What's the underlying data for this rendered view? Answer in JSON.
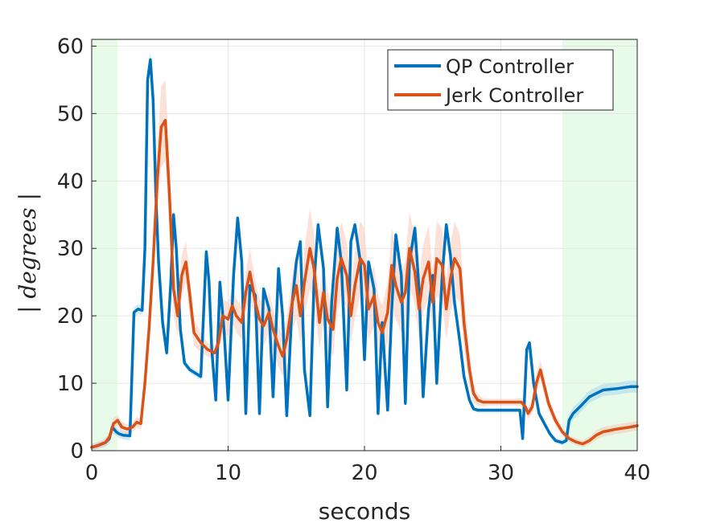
{
  "chart_data": {
    "type": "line",
    "xlabel": "seconds",
    "ylabel": "| degrees |",
    "xlim": [
      0,
      40
    ],
    "ylim": [
      0,
      61
    ],
    "xticks": [
      "0",
      "10",
      "20",
      "30",
      "40"
    ],
    "yticks": [
      "0",
      "10",
      "20",
      "30",
      "40",
      "50",
      "60"
    ],
    "grid": true,
    "legend_position": "top-right",
    "highlight_regions": [
      {
        "x_start": 0,
        "x_end": 1.9,
        "color": "#e8fbe8"
      },
      {
        "x_start": 34.5,
        "x_end": 40,
        "color": "#e8fbe8"
      }
    ],
    "series": [
      {
        "name": "QP Controller",
        "color": "#0072bd",
        "band_color": "#a8d8f0",
        "x": [
          0,
          0.5,
          1.0,
          1.3,
          1.5,
          1.8,
          2.0,
          2.3,
          2.8,
          3.1,
          3.4,
          3.7,
          3.9,
          4.1,
          4.3,
          4.5,
          4.7,
          4.9,
          5.2,
          5.5,
          5.8,
          6.0,
          6.2,
          6.5,
          6.8,
          7.2,
          7.6,
          8.0,
          8.4,
          8.6,
          8.8,
          9.1,
          9.4,
          9.7,
          10.0,
          10.4,
          10.7,
          11.0,
          11.3,
          11.6,
          12.0,
          12.3,
          12.6,
          13.0,
          13.3,
          13.7,
          14.0,
          14.3,
          14.7,
          15.0,
          15.3,
          15.6,
          16.0,
          16.3,
          16.6,
          17.0,
          17.3,
          17.6,
          18.0,
          18.3,
          18.7,
          19.0,
          19.3,
          19.7,
          20.0,
          20.3,
          20.7,
          21.0,
          21.3,
          21.7,
          22.0,
          22.3,
          22.7,
          23.0,
          23.3,
          23.7,
          24.0,
          24.3,
          24.7,
          25.0,
          25.3,
          25.7,
          26.0,
          26.3,
          26.6,
          27.0,
          27.3,
          27.7,
          28.0,
          28.3,
          28.6,
          30.0,
          31.0,
          31.4,
          31.6,
          31.9,
          32.1,
          32.4,
          32.8,
          33.2,
          33.6,
          34.0,
          34.5,
          34.8,
          35.0,
          35.3,
          35.8,
          36.5,
          37.5,
          38.5,
          39.5,
          40.0
        ],
        "values": [
          0.5,
          0.8,
          1.2,
          1.8,
          3.5,
          2.8,
          2.5,
          2.3,
          2.2,
          20.5,
          21.0,
          20.8,
          30.0,
          55.0,
          58.0,
          52.0,
          38.0,
          28.0,
          19.0,
          14.5,
          25.0,
          35.0,
          30.0,
          18.0,
          13.0,
          12.0,
          11.5,
          11.0,
          29.5,
          25.0,
          15.0,
          7.5,
          25.0,
          18.0,
          7.5,
          26.0,
          34.5,
          28.0,
          5.5,
          24.5,
          23.0,
          5.5,
          24.0,
          21.0,
          8.0,
          27.0,
          20.0,
          5.2,
          22.0,
          28.0,
          31.0,
          12.0,
          5.2,
          25.0,
          33.5,
          27.0,
          6.5,
          22.0,
          33.0,
          28.0,
          9.0,
          31.0,
          33.5,
          28.0,
          13.5,
          28.0,
          24.0,
          5.5,
          19.0,
          6.0,
          21.0,
          32.0,
          26.0,
          7.0,
          28.0,
          33.0,
          24.0,
          8.0,
          21.0,
          26.0,
          10.0,
          26.0,
          33.5,
          29.0,
          22.0,
          16.0,
          11.0,
          7.5,
          6.2,
          6.0,
          6.0,
          6.0,
          6.0,
          6.0,
          1.8,
          15.0,
          16.0,
          10.0,
          5.5,
          4.0,
          2.5,
          1.5,
          1.2,
          1.5,
          4.5,
          5.5,
          6.5,
          8.0,
          9.0,
          9.2,
          9.5,
          9.5
        ],
        "band": [
          0.5,
          0.5,
          0.6,
          0.7,
          0.9,
          0.6,
          0.6,
          0.6,
          0.7,
          0.8,
          0.7,
          0.7,
          1.0,
          1.5,
          1.2,
          1.5,
          1.2,
          1.2,
          1.0,
          0.8,
          1.0,
          1.0,
          1.0,
          0.8,
          0.5,
          0.5,
          0.5,
          0.5,
          0.8,
          0.8,
          0.6,
          0.5,
          0.8,
          0.8,
          0.5,
          0.8,
          0.8,
          0.8,
          0.5,
          0.8,
          0.6,
          0.5,
          0.8,
          0.6,
          0.5,
          0.8,
          0.6,
          0.5,
          0.8,
          0.8,
          0.8,
          0.6,
          0.5,
          0.8,
          0.8,
          0.8,
          0.5,
          0.8,
          0.8,
          0.8,
          0.5,
          0.8,
          0.8,
          0.8,
          0.5,
          0.8,
          0.6,
          0.5,
          0.6,
          0.5,
          0.6,
          0.8,
          0.6,
          0.5,
          0.8,
          0.8,
          0.6,
          0.5,
          0.6,
          0.6,
          0.5,
          0.8,
          0.8,
          0.8,
          0.6,
          0.6,
          0.5,
          0.5,
          0.4,
          0.3,
          0.3,
          0.3,
          0.3,
          0.3,
          0.3,
          0.5,
          0.5,
          0.5,
          0.5,
          0.5,
          0.4,
          0.4,
          0.4,
          0.4,
          0.8,
          0.9,
          0.9,
          0.9,
          0.9,
          0.9,
          0.9,
          0.9
        ]
      },
      {
        "name": "Jerk Controller",
        "color": "#d95319",
        "band_color": "#f7c9b8",
        "x": [
          0,
          0.5,
          1.0,
          1.3,
          1.6,
          1.9,
          2.2,
          2.6,
          3.0,
          3.3,
          3.6,
          3.9,
          4.2,
          4.5,
          4.8,
          5.1,
          5.4,
          5.7,
          6.0,
          6.3,
          6.6,
          6.9,
          7.2,
          7.5,
          8.0,
          8.5,
          9.0,
          9.3,
          9.6,
          10.0,
          10.3,
          10.6,
          11.0,
          11.3,
          11.6,
          12.0,
          12.3,
          12.6,
          13.0,
          13.3,
          13.7,
          14.0,
          14.3,
          14.7,
          15.0,
          15.3,
          15.6,
          16.0,
          16.3,
          16.7,
          17.0,
          17.3,
          17.7,
          18.0,
          18.3,
          18.7,
          19.0,
          19.3,
          19.7,
          20.0,
          20.3,
          20.7,
          21.0,
          21.3,
          21.7,
          22.0,
          22.3,
          22.7,
          23.0,
          23.3,
          23.7,
          24.0,
          24.3,
          24.7,
          25.0,
          25.3,
          25.7,
          26.0,
          26.3,
          26.6,
          27.0,
          27.3,
          27.7,
          28.0,
          28.3,
          28.7,
          29.0,
          30.0,
          31.0,
          31.5,
          31.8,
          32.0,
          32.3,
          32.6,
          32.9,
          33.2,
          33.5,
          34.0,
          34.5,
          35.0,
          35.5,
          36.0,
          36.5,
          37.0,
          37.5,
          38.5,
          39.5,
          40.0
        ],
        "values": [
          0.5,
          0.8,
          1.2,
          2.0,
          4.0,
          4.5,
          3.5,
          3.2,
          3.5,
          4.2,
          4.0,
          10.0,
          18.0,
          28.0,
          40.0,
          48.0,
          49.0,
          38.0,
          24.0,
          20.0,
          26.0,
          28.0,
          23.0,
          17.5,
          16.0,
          15.0,
          14.5,
          16.0,
          20.0,
          19.5,
          21.5,
          20.0,
          19.0,
          23.5,
          26.5,
          22.0,
          19.5,
          18.5,
          20.5,
          18.0,
          15.5,
          14.0,
          16.5,
          22.0,
          24.5,
          20.0,
          25.0,
          30.0,
          27.0,
          19.0,
          23.5,
          19.5,
          18.0,
          25.5,
          28.5,
          26.0,
          20.0,
          24.5,
          28.5,
          27.5,
          21.0,
          23.0,
          19.0,
          17.5,
          20.5,
          27.5,
          24.5,
          22.0,
          23.5,
          30.0,
          26.5,
          21.0,
          25.5,
          28.0,
          22.0,
          28.5,
          27.5,
          21.0,
          25.5,
          28.5,
          27.0,
          19.0,
          12.0,
          8.5,
          7.5,
          7.2,
          7.2,
          7.2,
          7.2,
          7.2,
          6.5,
          5.5,
          6.5,
          10.0,
          12.0,
          9.5,
          7.0,
          4.5,
          2.8,
          1.8,
          1.3,
          1.0,
          1.5,
          2.3,
          2.8,
          3.2,
          3.5,
          3.7
        ],
        "band": [
          0.5,
          0.5,
          0.6,
          0.7,
          0.9,
          0.8,
          0.7,
          0.7,
          0.7,
          0.8,
          0.8,
          1.5,
          2.5,
          3.5,
          5.0,
          6.0,
          6.0,
          5.0,
          4.0,
          3.0,
          3.0,
          3.0,
          3.0,
          2.0,
          1.5,
          1.0,
          1.0,
          1.5,
          2.5,
          2.5,
          2.5,
          2.5,
          2.5,
          3.0,
          3.5,
          3.0,
          3.0,
          3.0,
          3.0,
          3.0,
          3.0,
          3.0,
          3.0,
          4.0,
          5.0,
          4.0,
          5.0,
          6.0,
          5.0,
          4.0,
          4.5,
          4.0,
          4.0,
          5.0,
          5.5,
          5.0,
          4.0,
          5.0,
          5.5,
          5.5,
          4.5,
          4.5,
          4.0,
          4.0,
          4.5,
          5.5,
          5.0,
          4.5,
          4.5,
          5.5,
          5.0,
          4.5,
          5.0,
          5.5,
          4.5,
          5.5,
          5.5,
          4.5,
          5.0,
          5.5,
          5.0,
          4.0,
          2.5,
          1.5,
          0.8,
          0.6,
          0.5,
          0.5,
          0.5,
          0.6,
          0.8,
          0.8,
          1.0,
          1.5,
          1.5,
          1.3,
          1.0,
          0.8,
          0.6,
          0.5,
          0.5,
          0.5,
          0.6,
          0.7,
          0.7,
          0.7,
          0.7,
          0.7
        ]
      }
    ]
  }
}
